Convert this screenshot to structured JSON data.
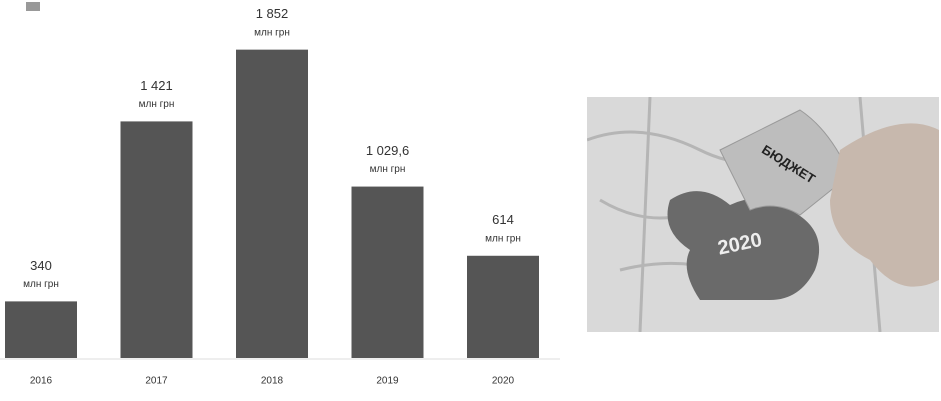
{
  "chart_data": {
    "type": "bar",
    "categories": [
      "2016",
      "2017",
      "2018",
      "2019",
      "2020"
    ],
    "values": [
      340,
      1421,
      1852,
      1029.6,
      614
    ],
    "value_labels": [
      "340",
      "1 421",
      "1 852",
      "1 029,6",
      "614"
    ],
    "unit": "млн грн",
    "color": "#555555",
    "ylim": [
      0,
      2000
    ]
  },
  "image": {
    "texts": [
      "БЮДЖЕТ",
      "2020"
    ]
  }
}
